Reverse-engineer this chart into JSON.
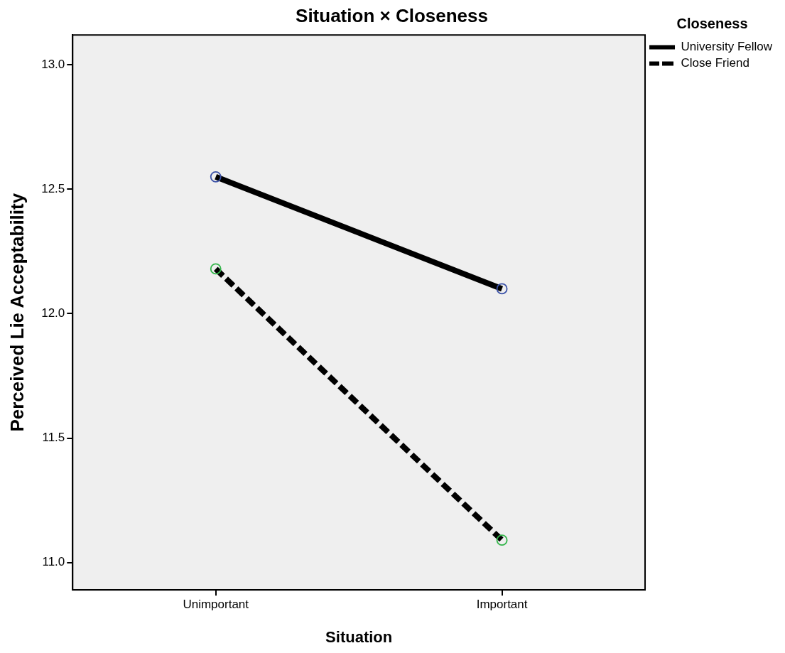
{
  "chart_data": {
    "type": "line",
    "title": "Situation × Closeness",
    "xlabel": "Situation",
    "ylabel": "Perceived Lie Acceptability",
    "legend_title": "Closeness",
    "categories": [
      "Unimportant",
      "Important"
    ],
    "series": [
      {
        "name": "University Fellow",
        "color": "#000000",
        "colors": [
          "#3b52a8",
          "#3b52a8"
        ],
        "line_style": "solid",
        "values": [
          12.55,
          12.1
        ]
      },
      {
        "name": "Close Friend",
        "color": "#000000",
        "colors": [
          "#33b54a",
          "#33b54a"
        ],
        "line_style": "dashed",
        "values": [
          12.18,
          11.09
        ]
      }
    ],
    "ylim": [
      10.89,
      13.12
    ],
    "yticks": [
      {
        "value": 11,
        "label": "11.0"
      },
      {
        "value": 11.5,
        "label": "11.5"
      },
      {
        "value": 12,
        "label": "12.0"
      },
      {
        "value": 12.5,
        "label": "12.5"
      },
      {
        "value": 13,
        "label": "13.0"
      }
    ],
    "marker": "circle",
    "legend": "top right"
  }
}
